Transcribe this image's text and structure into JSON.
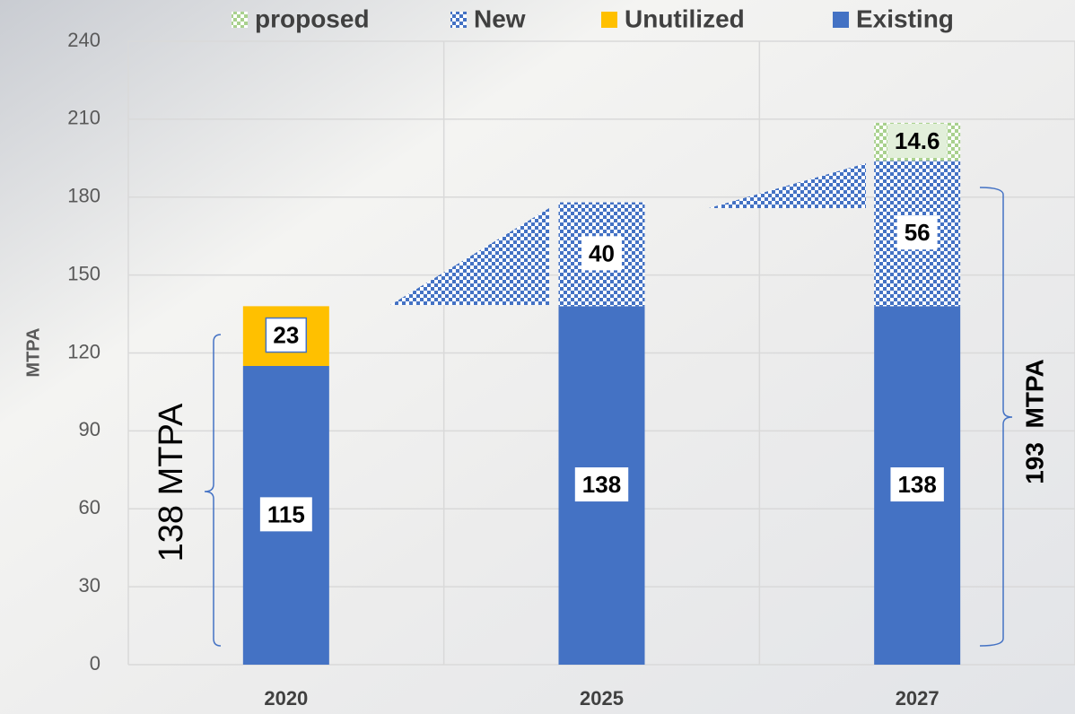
{
  "chart_data": {
    "type": "stacked_bar",
    "categories": [
      "2020",
      "2025",
      "2027"
    ],
    "series": [
      {
        "name": "Existing",
        "color": "#4472c4",
        "values": [
          115,
          138,
          138
        ]
      },
      {
        "name": "Unutilized",
        "color": "#ffc000",
        "values": [
          23,
          null,
          null
        ]
      },
      {
        "name": "New",
        "color": "#4472c4",
        "pattern": "checker",
        "values": [
          null,
          40,
          56
        ]
      },
      {
        "name": "proposed",
        "color": "#a9d18e",
        "pattern": "checker",
        "values": [
          null,
          null,
          14.6
        ]
      }
    ],
    "y_label": "MTPA",
    "annotations": [
      "138 MTPA",
      "193  MTPA"
    ],
    "ylim": [
      0,
      240
    ],
    "yticks": [
      0,
      30,
      60,
      90,
      120,
      150,
      180,
      210,
      240
    ],
    "grid": true,
    "legend": "top"
  }
}
